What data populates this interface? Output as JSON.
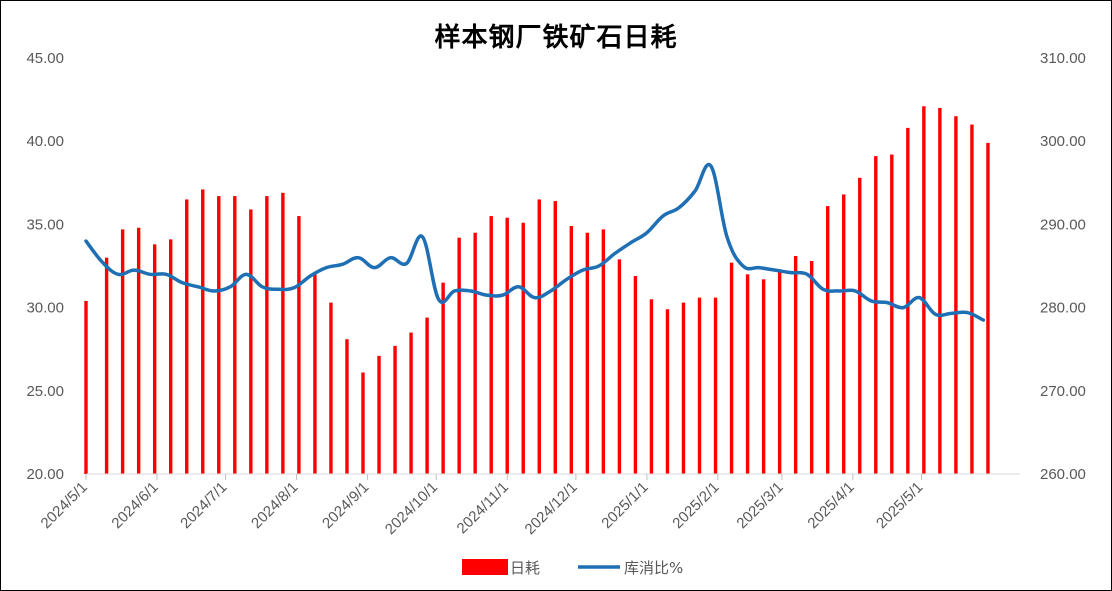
{
  "chart_data": {
    "type": "bar+line",
    "title": "样本钢厂铁矿石日耗",
    "left_axis": {
      "ylim": [
        20,
        45
      ],
      "ticks": [
        "20.00",
        "25.00",
        "30.00",
        "35.00",
        "40.00",
        "45.00"
      ]
    },
    "right_axis": {
      "ylim": [
        260,
        310
      ],
      "ticks": [
        "260.00",
        "270.00",
        "280.00",
        "290.00",
        "300.00",
        "310.00"
      ]
    },
    "x_ticks": [
      "2024/5/1",
      "2024/6/1",
      "2024/7/1",
      "2024/8/1",
      "2024/9/1",
      "2024/10/1",
      "2024/11/1",
      "2024/12/1",
      "2025/1/1",
      "2025/2/1",
      "2025/3/1",
      "2025/4/1",
      "2025/5/1"
    ],
    "x_range": [
      "2024/5/1",
      "2025/6/13"
    ],
    "legend": {
      "placement": "bottom",
      "entries": [
        "日耗",
        "库消比%"
      ]
    },
    "series": [
      {
        "name": "日耗",
        "kind": "bar",
        "axis": "left",
        "color": "#FF0000",
        "points": [
          [
            "2024/5/1",
            30.4
          ],
          [
            "2024/5/10",
            33.0
          ],
          [
            "2024/5/17",
            34.7
          ],
          [
            "2024/5/24",
            34.8
          ],
          [
            "2024/5/31",
            33.8
          ],
          [
            "2024/6/7",
            34.1
          ],
          [
            "2024/6/14",
            36.5
          ],
          [
            "2024/6/21",
            37.1
          ],
          [
            "2024/6/28",
            36.7
          ],
          [
            "2024/7/5",
            36.7
          ],
          [
            "2024/7/12",
            35.9
          ],
          [
            "2024/7/19",
            36.7
          ],
          [
            "2024/7/26",
            36.9
          ],
          [
            "2024/8/2",
            35.5
          ],
          [
            "2024/8/9",
            32.0
          ],
          [
            "2024/8/16",
            30.3
          ],
          [
            "2024/8/23",
            28.1
          ],
          [
            "2024/8/30",
            26.1
          ],
          [
            "2024/9/6",
            27.1
          ],
          [
            "2024/9/13",
            27.7
          ],
          [
            "2024/9/20",
            28.5
          ],
          [
            "2024/9/27",
            29.4
          ],
          [
            "2024/10/4",
            31.5
          ],
          [
            "2024/10/11",
            34.2
          ],
          [
            "2024/10/18",
            34.5
          ],
          [
            "2024/10/25",
            35.5
          ],
          [
            "2024/11/1",
            35.4
          ],
          [
            "2024/11/8",
            35.1
          ],
          [
            "2024/11/15",
            36.5
          ],
          [
            "2024/11/22",
            36.4
          ],
          [
            "2024/11/29",
            34.9
          ],
          [
            "2024/12/6",
            34.5
          ],
          [
            "2024/12/13",
            34.7
          ],
          [
            "2024/12/20",
            32.9
          ],
          [
            "2024/12/27",
            31.9
          ],
          [
            "2025/1/3",
            30.5
          ],
          [
            "2025/1/10",
            29.9
          ],
          [
            "2025/1/17",
            30.3
          ],
          [
            "2025/1/24",
            30.6
          ],
          [
            "2025/1/31",
            30.6
          ],
          [
            "2025/2/7",
            32.7
          ],
          [
            "2025/2/14",
            32.0
          ],
          [
            "2025/2/21",
            31.7
          ],
          [
            "2025/2/28",
            32.3
          ],
          [
            "2025/3/7",
            33.1
          ],
          [
            "2025/3/14",
            32.8
          ],
          [
            "2025/3/21",
            36.1
          ],
          [
            "2025/3/28",
            36.8
          ],
          [
            "2025/4/4",
            37.8
          ],
          [
            "2025/4/11",
            39.1
          ],
          [
            "2025/4/18",
            39.2
          ],
          [
            "2025/4/25",
            40.8
          ],
          [
            "2025/5/2",
            42.1
          ],
          [
            "2025/5/9",
            42.0
          ],
          [
            "2025/5/16",
            41.5
          ],
          [
            "2025/5/23",
            41.0
          ],
          [
            "2025/5/30",
            39.9
          ]
        ]
      },
      {
        "name": "库消比%",
        "kind": "line",
        "axis": "right",
        "color": "#1F6FB5",
        "points": [
          [
            "2024/5/1",
            288.0
          ],
          [
            "2024/5/8",
            285.5
          ],
          [
            "2024/5/15",
            284.0
          ],
          [
            "2024/5/22",
            284.5
          ],
          [
            "2024/5/29",
            284.0
          ],
          [
            "2024/6/5",
            284.0
          ],
          [
            "2024/6/12",
            283.0
          ],
          [
            "2024/6/19",
            282.5
          ],
          [
            "2024/6/26",
            282.0
          ],
          [
            "2024/7/3",
            282.5
          ],
          [
            "2024/7/10",
            284.0
          ],
          [
            "2024/7/17",
            282.5
          ],
          [
            "2024/7/24",
            282.2
          ],
          [
            "2024/7/31",
            282.4
          ],
          [
            "2024/8/7",
            283.8
          ],
          [
            "2024/8/14",
            284.8
          ],
          [
            "2024/8/21",
            285.2
          ],
          [
            "2024/8/28",
            286.0
          ],
          [
            "2024/9/4",
            284.8
          ],
          [
            "2024/9/11",
            286.0
          ],
          [
            "2024/9/18",
            285.3
          ],
          [
            "2024/9/25",
            288.5
          ],
          [
            "2024/10/2",
            281.0
          ],
          [
            "2024/10/9",
            282.0
          ],
          [
            "2024/10/16",
            282.0
          ],
          [
            "2024/10/23",
            281.5
          ],
          [
            "2024/10/30",
            281.5
          ],
          [
            "2024/11/6",
            282.5
          ],
          [
            "2024/11/13",
            281.2
          ],
          [
            "2024/11/20",
            282.0
          ],
          [
            "2024/11/27",
            283.4
          ],
          [
            "2024/12/4",
            284.5
          ],
          [
            "2024/12/11",
            285.0
          ],
          [
            "2024/12/18",
            286.5
          ],
          [
            "2024/12/25",
            287.8
          ],
          [
            "2025/1/1",
            289.0
          ],
          [
            "2025/1/8",
            291.0
          ],
          [
            "2025/1/15",
            292.0
          ],
          [
            "2025/1/22",
            294.0
          ],
          [
            "2025/1/29",
            297.0
          ],
          [
            "2025/2/5",
            288.5
          ],
          [
            "2025/2/12",
            285.0
          ],
          [
            "2025/2/19",
            284.8
          ],
          [
            "2025/2/26",
            284.5
          ],
          [
            "2025/3/5",
            284.2
          ],
          [
            "2025/3/12",
            284.0
          ],
          [
            "2025/3/19",
            282.2
          ],
          [
            "2025/3/26",
            282.0
          ],
          [
            "2025/4/2",
            282.0
          ],
          [
            "2025/4/9",
            280.8
          ],
          [
            "2025/4/16",
            280.6
          ],
          [
            "2025/4/23",
            280.0
          ],
          [
            "2025/4/30",
            281.2
          ],
          [
            "2025/5/7",
            279.2
          ],
          [
            "2025/5/14",
            279.3
          ],
          [
            "2025/5/21",
            279.4
          ],
          [
            "2025/5/28",
            278.5
          ]
        ]
      }
    ]
  }
}
